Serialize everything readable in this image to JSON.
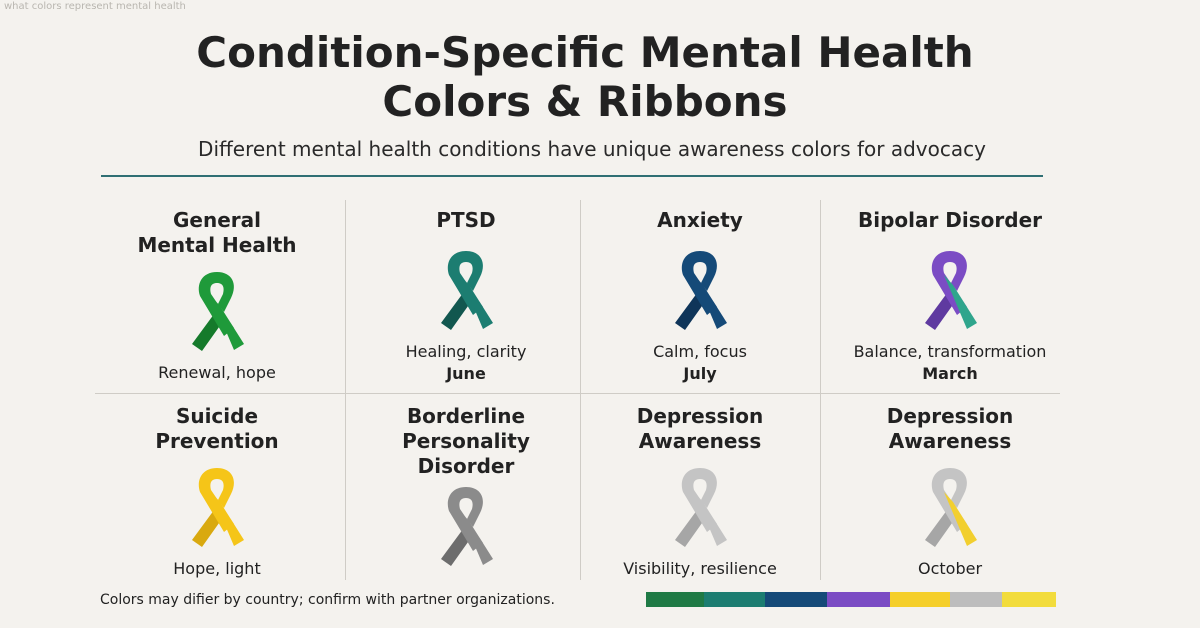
{
  "watermark": "what colors represent mental health",
  "title": "Condition-Specific Mental Health\nColors & Ribbons",
  "subtitle": "Different mental health conditions have unique awareness colors for advocacy",
  "cards": [
    {
      "title": "General\nMental Health",
      "ribbon_main": "#1f9a3a",
      "ribbon_dark": "#157a2b",
      "ribbon_accent": "",
      "desc": "Renewal, hope",
      "month": ""
    },
    {
      "title": "PTSD",
      "ribbon_main": "#1c7d71",
      "ribbon_dark": "#12574f",
      "ribbon_accent": "",
      "desc": "Healing, clarity",
      "month": "June"
    },
    {
      "title": "Anxiety",
      "ribbon_main": "#154a78",
      "ribbon_dark": "#0f3559",
      "ribbon_accent": "",
      "desc": "Calm, focus",
      "month": "July"
    },
    {
      "title": "Bipolar Disorder",
      "ribbon_main": "#7b4cc4",
      "ribbon_dark": "#5f3aa0",
      "ribbon_accent": "#2fa58c",
      "desc": "Balance, transformation",
      "month": "March"
    },
    {
      "title": "Suicide\nPrevention",
      "ribbon_main": "#f5c518",
      "ribbon_dark": "#d9a90f",
      "ribbon_accent": "",
      "desc": "Hope, light",
      "month": ""
    },
    {
      "title": "Borderline\nPersonality\nDisorder",
      "ribbon_main": "#8b8b8b",
      "ribbon_dark": "#6d6d6d",
      "ribbon_accent": "",
      "desc": "",
      "month": ""
    },
    {
      "title": "Depression\nAwareness",
      "ribbon_main": "#c4c4c4",
      "ribbon_dark": "#a6a6a6",
      "ribbon_accent": "",
      "desc": "Visibility, resilience",
      "month": ""
    },
    {
      "title": "Depression\nAwareness",
      "ribbon_main": "#c4c4c4",
      "ribbon_dark": "#a6a6a6",
      "ribbon_accent": "#f2cf2e",
      "desc": "October",
      "month": ""
    }
  ],
  "footer": {
    "note": "Colors may difier by country; confirm with partner organizations.",
    "color_bar": [
      "#1f7a45",
      "#1c7d71",
      "#154a78",
      "#7b4cc4",
      "#f5cf2a",
      "#bdbdbd",
      "#f2dc3c"
    ]
  }
}
